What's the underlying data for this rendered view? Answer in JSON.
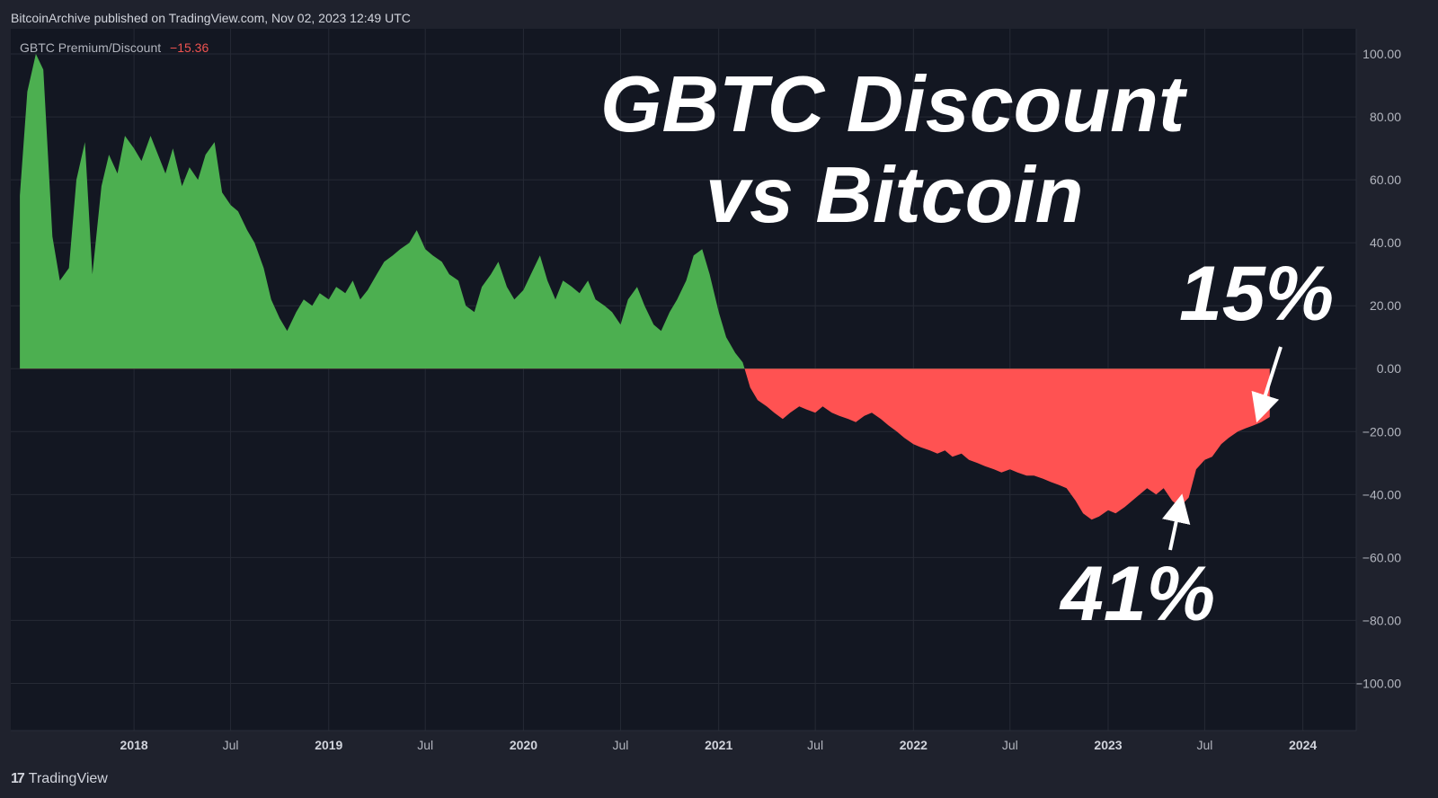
{
  "header": {
    "publisher_text": "BitcoinArchive published on TradingView.com, Nov 02, 2023 12:49 UTC"
  },
  "legend": {
    "name": "GBTC Premium/Discount",
    "value": "−15.36"
  },
  "annotations": {
    "title_line1": "GBTC Discount",
    "title_line2": "vs Bitcoin",
    "label_15": "15%",
    "label_41": "41%"
  },
  "footer": {
    "brand": "TradingView",
    "logo_icon": "tradingview-logo-icon"
  },
  "colors": {
    "positive": "#4caf50",
    "negative": "#ff5252",
    "background": "#131722",
    "frame": "#1f222d",
    "grid": "#262a35",
    "text": "#b2b5be"
  },
  "chart_data": {
    "type": "area",
    "series": [
      {
        "name": "GBTC Premium/Discount",
        "points": [
          [
            "2017-06-01",
            55
          ],
          [
            "2017-06-15",
            88
          ],
          [
            "2017-07-01",
            100
          ],
          [
            "2017-07-15",
            95
          ],
          [
            "2017-08-01",
            42
          ],
          [
            "2017-08-15",
            28
          ],
          [
            "2017-09-01",
            32
          ],
          [
            "2017-09-15",
            60
          ],
          [
            "2017-10-01",
            72
          ],
          [
            "2017-10-15",
            30
          ],
          [
            "2017-11-01",
            58
          ],
          [
            "2017-11-15",
            68
          ],
          [
            "2017-12-01",
            62
          ],
          [
            "2017-12-15",
            74
          ],
          [
            "2018-01-01",
            70
          ],
          [
            "2018-01-15",
            66
          ],
          [
            "2018-02-01",
            74
          ],
          [
            "2018-02-15",
            68
          ],
          [
            "2018-03-01",
            62
          ],
          [
            "2018-03-15",
            70
          ],
          [
            "2018-04-01",
            58
          ],
          [
            "2018-04-15",
            64
          ],
          [
            "2018-05-01",
            60
          ],
          [
            "2018-05-15",
            68
          ],
          [
            "2018-06-01",
            72
          ],
          [
            "2018-06-15",
            56
          ],
          [
            "2018-07-01",
            52
          ],
          [
            "2018-07-15",
            50
          ],
          [
            "2018-08-01",
            44
          ],
          [
            "2018-08-15",
            40
          ],
          [
            "2018-09-01",
            32
          ],
          [
            "2018-09-15",
            22
          ],
          [
            "2018-10-01",
            16
          ],
          [
            "2018-10-15",
            12
          ],
          [
            "2018-11-01",
            18
          ],
          [
            "2018-11-15",
            22
          ],
          [
            "2018-12-01",
            20
          ],
          [
            "2018-12-15",
            24
          ],
          [
            "2019-01-01",
            22
          ],
          [
            "2019-01-15",
            26
          ],
          [
            "2019-02-01",
            24
          ],
          [
            "2019-02-15",
            28
          ],
          [
            "2019-03-01",
            22
          ],
          [
            "2019-03-15",
            25
          ],
          [
            "2019-04-01",
            30
          ],
          [
            "2019-04-15",
            34
          ],
          [
            "2019-05-01",
            36
          ],
          [
            "2019-05-15",
            38
          ],
          [
            "2019-06-01",
            40
          ],
          [
            "2019-06-15",
            44
          ],
          [
            "2019-07-01",
            38
          ],
          [
            "2019-07-15",
            36
          ],
          [
            "2019-08-01",
            34
          ],
          [
            "2019-08-15",
            30
          ],
          [
            "2019-09-01",
            28
          ],
          [
            "2019-09-15",
            20
          ],
          [
            "2019-10-01",
            18
          ],
          [
            "2019-10-15",
            26
          ],
          [
            "2019-11-01",
            30
          ],
          [
            "2019-11-15",
            34
          ],
          [
            "2019-12-01",
            26
          ],
          [
            "2019-12-15",
            22
          ],
          [
            "2020-01-01",
            25
          ],
          [
            "2020-01-15",
            30
          ],
          [
            "2020-02-01",
            36
          ],
          [
            "2020-02-15",
            28
          ],
          [
            "2020-03-01",
            22
          ],
          [
            "2020-03-15",
            28
          ],
          [
            "2020-04-01",
            26
          ],
          [
            "2020-04-15",
            24
          ],
          [
            "2020-05-01",
            28
          ],
          [
            "2020-05-15",
            22
          ],
          [
            "2020-06-01",
            20
          ],
          [
            "2020-06-15",
            18
          ],
          [
            "2020-07-01",
            14
          ],
          [
            "2020-07-15",
            22
          ],
          [
            "2020-08-01",
            26
          ],
          [
            "2020-08-15",
            20
          ],
          [
            "2020-09-01",
            14
          ],
          [
            "2020-09-15",
            12
          ],
          [
            "2020-10-01",
            18
          ],
          [
            "2020-10-15",
            22
          ],
          [
            "2020-11-01",
            28
          ],
          [
            "2020-11-15",
            36
          ],
          [
            "2020-12-01",
            38
          ],
          [
            "2020-12-15",
            30
          ],
          [
            "2021-01-01",
            18
          ],
          [
            "2021-01-15",
            10
          ],
          [
            "2021-02-01",
            5
          ],
          [
            "2021-02-15",
            2
          ],
          [
            "2021-03-01",
            -6
          ],
          [
            "2021-03-15",
            -10
          ],
          [
            "2021-04-01",
            -12
          ],
          [
            "2021-04-15",
            -14
          ],
          [
            "2021-05-01",
            -16
          ],
          [
            "2021-05-15",
            -14
          ],
          [
            "2021-06-01",
            -12
          ],
          [
            "2021-06-15",
            -13
          ],
          [
            "2021-07-01",
            -14
          ],
          [
            "2021-07-15",
            -12
          ],
          [
            "2021-08-01",
            -14
          ],
          [
            "2021-08-15",
            -15
          ],
          [
            "2021-09-01",
            -16
          ],
          [
            "2021-09-15",
            -17
          ],
          [
            "2021-10-01",
            -15
          ],
          [
            "2021-10-15",
            -14
          ],
          [
            "2021-11-01",
            -16
          ],
          [
            "2021-11-15",
            -18
          ],
          [
            "2021-12-01",
            -20
          ],
          [
            "2021-12-15",
            -22
          ],
          [
            "2022-01-01",
            -24
          ],
          [
            "2022-01-15",
            -25
          ],
          [
            "2022-02-01",
            -26
          ],
          [
            "2022-02-15",
            -27
          ],
          [
            "2022-03-01",
            -26
          ],
          [
            "2022-03-15",
            -28
          ],
          [
            "2022-04-01",
            -27
          ],
          [
            "2022-04-15",
            -29
          ],
          [
            "2022-05-01",
            -30
          ],
          [
            "2022-05-15",
            -31
          ],
          [
            "2022-06-01",
            -32
          ],
          [
            "2022-06-15",
            -33
          ],
          [
            "2022-07-01",
            -32
          ],
          [
            "2022-07-15",
            -33
          ],
          [
            "2022-08-01",
            -34
          ],
          [
            "2022-08-15",
            -34
          ],
          [
            "2022-09-01",
            -35
          ],
          [
            "2022-09-15",
            -36
          ],
          [
            "2022-10-01",
            -37
          ],
          [
            "2022-10-15",
            -38
          ],
          [
            "2022-11-01",
            -42
          ],
          [
            "2022-11-15",
            -46
          ],
          [
            "2022-12-01",
            -48
          ],
          [
            "2022-12-15",
            -47
          ],
          [
            "2023-01-01",
            -45
          ],
          [
            "2023-01-15",
            -46
          ],
          [
            "2023-02-01",
            -44
          ],
          [
            "2023-02-15",
            -42
          ],
          [
            "2023-03-01",
            -40
          ],
          [
            "2023-03-15",
            -38
          ],
          [
            "2023-04-01",
            -40
          ],
          [
            "2023-04-15",
            -38
          ],
          [
            "2023-05-01",
            -42
          ],
          [
            "2023-05-15",
            -44
          ],
          [
            "2023-06-01",
            -41
          ],
          [
            "2023-06-15",
            -32
          ],
          [
            "2023-07-01",
            -29
          ],
          [
            "2023-07-15",
            -28
          ],
          [
            "2023-08-01",
            -24
          ],
          [
            "2023-08-15",
            -22
          ],
          [
            "2023-09-01",
            -20
          ],
          [
            "2023-09-15",
            -19
          ],
          [
            "2023-10-01",
            -18
          ],
          [
            "2023-10-15",
            -17
          ],
          [
            "2023-10-31",
            -15.36
          ]
        ]
      }
    ],
    "ylim": [
      -115,
      108
    ],
    "y_ticks": [
      100,
      80,
      60,
      40,
      20,
      0,
      -20,
      -40,
      -60,
      -80,
      -100
    ],
    "y_tick_labels": [
      "100.00",
      "80.00",
      "60.00",
      "40.00",
      "20.00",
      "0.00",
      "−20.00",
      "−40.00",
      "−60.00",
      "−80.00",
      "−100.00"
    ],
    "xlim": [
      "2017-05-15",
      "2024-04-10"
    ],
    "x_ticks": [
      {
        "date": "2018-01-01",
        "label": "2018",
        "year": true
      },
      {
        "date": "2018-07-01",
        "label": "Jul",
        "year": false
      },
      {
        "date": "2019-01-01",
        "label": "2019",
        "year": true
      },
      {
        "date": "2019-07-01",
        "label": "Jul",
        "year": false
      },
      {
        "date": "2020-01-01",
        "label": "2020",
        "year": true
      },
      {
        "date": "2020-07-01",
        "label": "Jul",
        "year": false
      },
      {
        "date": "2021-01-01",
        "label": "2021",
        "year": true
      },
      {
        "date": "2021-07-01",
        "label": "Jul",
        "year": false
      },
      {
        "date": "2022-01-01",
        "label": "2022",
        "year": true
      },
      {
        "date": "2022-07-01",
        "label": "Jul",
        "year": false
      },
      {
        "date": "2023-01-01",
        "label": "2023",
        "year": true
      },
      {
        "date": "2023-07-01",
        "label": "Jul",
        "year": false
      },
      {
        "date": "2024-01-01",
        "label": "2024",
        "year": true
      }
    ],
    "grid": true,
    "baseline": 0
  }
}
